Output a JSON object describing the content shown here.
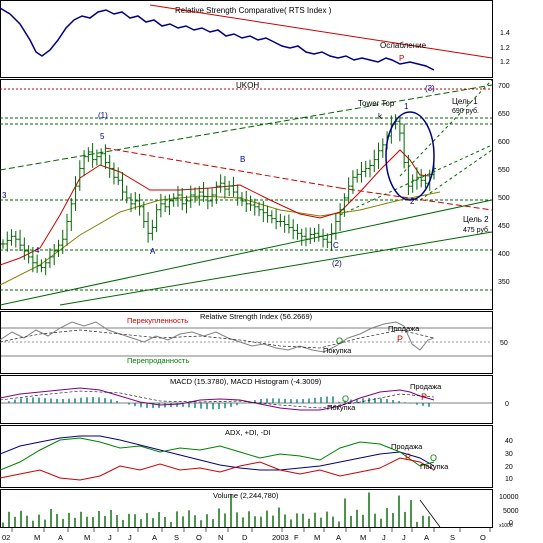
{
  "chart_data": {
    "type": "line",
    "panels": {
      "rsc": {
        "title": "Relative Strength Comparative( RTS Index )",
        "yticks": [
          "1.4",
          "1.2",
          "1.2"
        ],
        "annotation": "Ослабление",
        "marker": "P"
      },
      "price": {
        "title": "UKOH",
        "yticks": [
          "700",
          "650",
          "600",
          "550",
          "500",
          "450",
          "400",
          "350"
        ],
        "ylim": [
          320,
          710
        ],
        "labels": {
          "wave1": "(1)",
          "wave2": "(2)",
          "wave3": "(3)",
          "w5": "5",
          "w4": "4",
          "w3": "3",
          "wA": "A",
          "wB": "B",
          "wC": "C",
          "w1": "1",
          "w2": "2",
          "k": "k",
          "tower": "Tower Top",
          "target1a": "Цель 1",
          "target1b": "690 руб.",
          "target2a": "Цель 2",
          "target2b": "475 руб."
        },
        "close": [
          432,
          438,
          445,
          440,
          430,
          420,
          410,
          400,
          395,
          392,
          400,
          410,
          420,
          430,
          440,
          470,
          500,
          530,
          560,
          580,
          588,
          575,
          580,
          585,
          570,
          560,
          545,
          540,
          520,
          510,
          500,
          505,
          495,
          470,
          450,
          460,
          490,
          500,
          495,
          505,
          510,
          515,
          500,
          505,
          515,
          510,
          520,
          512,
          505,
          515,
          530,
          535,
          525,
          530,
          520,
          510,
          505,
          500,
          498,
          495,
          490,
          485,
          480,
          475,
          470,
          470,
          465,
          460,
          455,
          450,
          445,
          440,
          448,
          450,
          445,
          440,
          435,
          450,
          470,
          490,
          510,
          530,
          545,
          550,
          555,
          560,
          565,
          575,
          590,
          600,
          615,
          635,
          640,
          620,
          570,
          530,
          540,
          545,
          540,
          535,
          550,
          560
        ]
      },
      "rsi": {
        "title": "Relative Strength Index (56.2669)",
        "overbought": "Перекупленность",
        "oversold": "Перепроданность",
        "buy": "Покупка",
        "sell": "Продажа",
        "yticks": [
          "50"
        ]
      },
      "macd": {
        "title": "MACD (15.3780), MACD Histogram (-4.3009)",
        "buy": "Покупка",
        "sell": "Продажа",
        "yticks": [
          "0"
        ]
      },
      "adx": {
        "title": "ADX, +DI, -DI",
        "sell": "Продажа",
        "buy": "Покупка",
        "yticks": [
          "40",
          "30",
          "20",
          "10"
        ]
      },
      "volume": {
        "title": "Volume (2,244,780)",
        "yticks": [
          "10000",
          "5000",
          "0"
        ],
        "unit": "x1000"
      }
    },
    "x_labels": [
      "02",
      "M",
      "A",
      "M",
      "J",
      "J",
      "A",
      "S",
      "O",
      "N",
      "D",
      "2003",
      "F",
      "M",
      "A",
      "M",
      "J",
      "J",
      "A",
      "S",
      "O"
    ],
    "colors": {
      "price_bar": "#006600",
      "rsc_line": "#000080",
      "ma_short": "#cc0000",
      "ma_long": "#808000",
      "trend_red": "#cc0000",
      "trend_green": "#006600",
      "macd_line": "#800080",
      "macd_hist": "#008080",
      "adx": "#000080",
      "di_plus": "#008000",
      "di_minus": "#cc0000",
      "volume": "#006600"
    }
  }
}
